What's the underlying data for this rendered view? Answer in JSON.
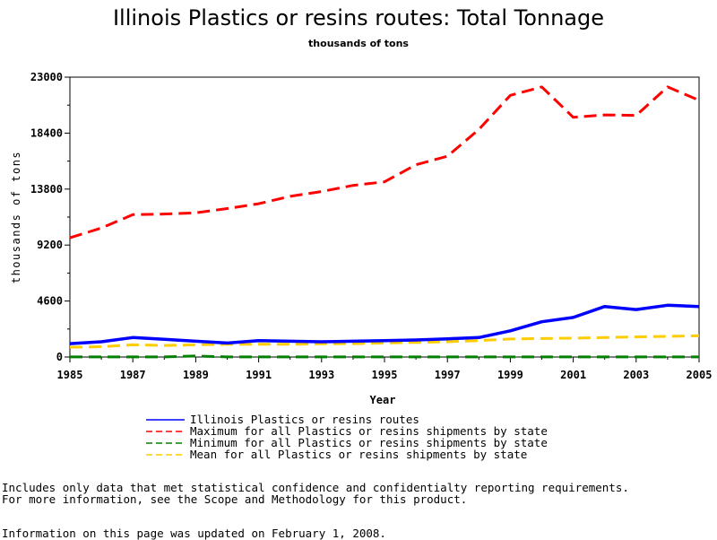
{
  "chart_data": {
    "type": "line",
    "title": "Illinois Plastics or resins routes: Total Tonnage",
    "subtitle": "thousands of tons",
    "xlabel": "Year",
    "ylabel": "thousands of tons",
    "xlim": [
      1985,
      2005
    ],
    "ylim": [
      0,
      23000
    ],
    "x_ticks": [
      "1985",
      "1987",
      "1989",
      "1991",
      "1993",
      "1995",
      "1997",
      "1999",
      "2001",
      "2003",
      "2005"
    ],
    "y_ticks": [
      "0",
      "4600",
      "9200",
      "13800",
      "18400",
      "23000"
    ],
    "x": [
      1985,
      1986,
      1987,
      1988,
      1989,
      1990,
      1991,
      1992,
      1993,
      1994,
      1995,
      1996,
      1997,
      1998,
      1999,
      2000,
      2001,
      2002,
      2003,
      2004,
      2005
    ],
    "series": [
      {
        "name": "Illinois Plastics or resins routes",
        "color": "#0000ff",
        "dash": "solid",
        "values": [
          1100,
          1250,
          1600,
          1450,
          1300,
          1150,
          1350,
          1300,
          1250,
          1300,
          1350,
          1400,
          1500,
          1600,
          2150,
          2900,
          3250,
          4150,
          3900,
          4250,
          4150
        ]
      },
      {
        "name": "Maximum for all Plastics or resins shipments by state",
        "color": "#ff0000",
        "dash": "dashed",
        "values": [
          9800,
          10600,
          11700,
          11750,
          11850,
          12200,
          12600,
          13200,
          13600,
          14100,
          14400,
          15800,
          16500,
          18700,
          21500,
          22200,
          19700,
          19900,
          19850,
          22200,
          21100
        ]
      },
      {
        "name": "Minimum for all Plastics or resins shipments by state",
        "color": "#008000",
        "dash": "dashed",
        "values": [
          5,
          5,
          5,
          5,
          80,
          5,
          5,
          5,
          5,
          5,
          5,
          5,
          5,
          5,
          5,
          5,
          5,
          5,
          5,
          5,
          5
        ]
      },
      {
        "name": "Mean for all Plastics or resins shipments by state",
        "color": "#ffcc00",
        "dash": "dashed",
        "values": [
          800,
          850,
          1000,
          950,
          1000,
          1050,
          1050,
          1050,
          1080,
          1100,
          1150,
          1200,
          1250,
          1350,
          1480,
          1520,
          1550,
          1600,
          1650,
          1700,
          1750
        ]
      }
    ],
    "grid": false,
    "legend_position": "bottom"
  },
  "footnotes": {
    "line1": "Includes only data that met statistical confidence and confidentialty reporting requirements.",
    "line2": "For more information, see the Scope and Methodology for this product.",
    "line3": "Information on this page was updated on February 1, 2008."
  }
}
